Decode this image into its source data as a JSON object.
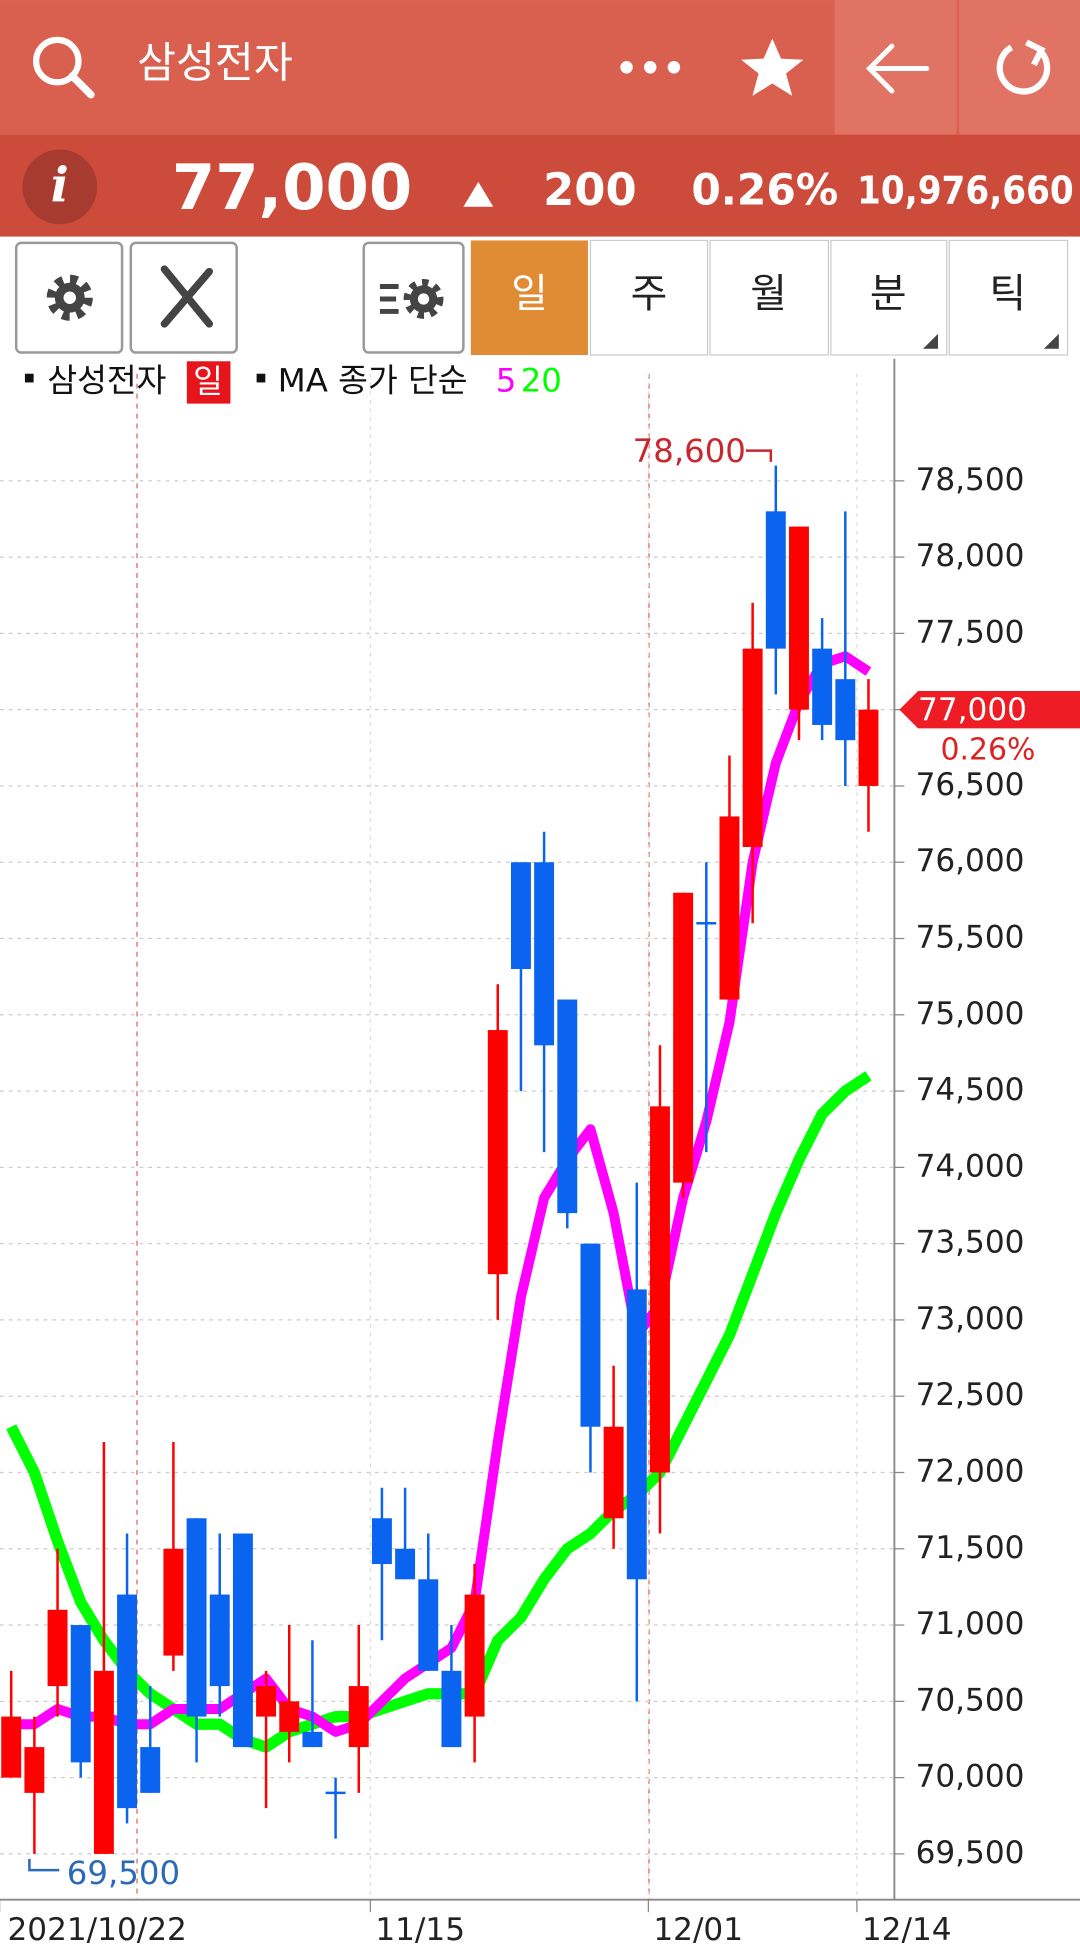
{
  "header": {
    "title": "삼성전자"
  },
  "quote": {
    "price": "77,000",
    "change": "200",
    "change_rate": "0.26%",
    "volume": "10,976,660"
  },
  "toolbar": {
    "tabs": [
      "일",
      "주",
      "월",
      "분",
      "틱"
    ]
  },
  "chart_data": {
    "type": "candlestick",
    "name": "삼성전자",
    "period": "일",
    "ma_label": "MA 종가 단순",
    "up_color": "#ff0000",
    "down_color": "#0a64f0",
    "categories": [
      "2021/10/22",
      null,
      null,
      null,
      null,
      null,
      null,
      null,
      null,
      null,
      null,
      null,
      null,
      null,
      null,
      null,
      "11/15",
      null,
      null,
      null,
      null,
      null,
      null,
      null,
      null,
      null,
      null,
      null,
      "12/01",
      null,
      null,
      null,
      null,
      null,
      null,
      null,
      null,
      "12/14"
    ],
    "open": [
      70000,
      69900,
      70600,
      71000,
      69500,
      71200,
      70200,
      70800,
      71700,
      71200,
      71600,
      70400,
      70300,
      70300,
      69900,
      70200,
      71700,
      71500,
      71300,
      70700,
      70400,
      73300,
      76000,
      76000,
      75100,
      73500,
      71700,
      73200,
      72000,
      73900,
      75600,
      75100,
      76100,
      78300,
      77000,
      77400,
      77200,
      76500
    ],
    "high": [
      70700,
      70400,
      71500,
      71000,
      72200,
      71600,
      70600,
      72200,
      71700,
      71600,
      71600,
      70700,
      71000,
      70900,
      70000,
      71000,
      71900,
      71900,
      71600,
      71000,
      71400,
      75200,
      76000,
      76200,
      75100,
      73500,
      72700,
      73900,
      74800,
      75800,
      76000,
      76700,
      77700,
      78600,
      78200,
      77600,
      78300,
      77200
    ],
    "low": [
      70000,
      69500,
      70400,
      70000,
      69500,
      69700,
      69900,
      70700,
      70100,
      70400,
      70200,
      69800,
      70100,
      70200,
      69600,
      69900,
      70900,
      71300,
      70700,
      70200,
      70100,
      73000,
      74500,
      74100,
      73600,
      72000,
      71500,
      70500,
      71600,
      73800,
      74100,
      75100,
      75600,
      77100,
      76800,
      76800,
      76500,
      76200
    ],
    "close": [
      70400,
      70200,
      71100,
      70100,
      70700,
      69800,
      69900,
      71500,
      70400,
      70600,
      70200,
      70600,
      70500,
      70200,
      69900,
      70600,
      71400,
      71300,
      70700,
      70200,
      71200,
      74900,
      75300,
      74800,
      73700,
      72300,
      72300,
      71300,
      74400,
      75800,
      75600,
      76300,
      77400,
      77400,
      78200,
      76900,
      76800,
      77000
    ],
    "series": [
      {
        "name": "5",
        "color": "#ff00ff",
        "values": [
          70350,
          70350,
          70450,
          70400,
          70400,
          70350,
          70350,
          70450,
          70450,
          70450,
          70550,
          70650,
          70450,
          70400,
          70300,
          70350,
          70500,
          70650,
          70750,
          70850,
          71150,
          72200,
          73150,
          73800,
          74050,
          74250,
          73700,
          72900,
          73100,
          73800,
          74300,
          74950,
          76000,
          76650,
          77050,
          77300,
          77350,
          77250
        ]
      },
      {
        "name": "20",
        "color": "#00ff00",
        "values": [
          72300,
          72000,
          71550,
          71150,
          70900,
          70700,
          70550,
          70450,
          70350,
          70350,
          70250,
          70200,
          70300,
          70350,
          70400,
          70400,
          70450,
          70500,
          70550,
          70550,
          70550,
          70900,
          71050,
          71300,
          71500,
          71600,
          71750,
          71850,
          72000,
          72300,
          72600,
          72900,
          73300,
          73700,
          74050,
          74350,
          74500,
          74600
        ]
      }
    ],
    "ylim": [
      69200,
      79300
    ],
    "yticks": [
      {
        "value": 69500,
        "label": "69,500"
      },
      {
        "value": 70000,
        "label": "70,000"
      },
      {
        "value": 70500,
        "label": "70,500"
      },
      {
        "value": 71000,
        "label": "71,000"
      },
      {
        "value": 71500,
        "label": "71,500"
      },
      {
        "value": 72000,
        "label": "72,000"
      },
      {
        "value": 72500,
        "label": "72,500"
      },
      {
        "value": 73000,
        "label": "73,000"
      },
      {
        "value": 73500,
        "label": "73,500"
      },
      {
        "value": 74000,
        "label": "74,000"
      },
      {
        "value": 74500,
        "label": "74,500"
      },
      {
        "value": 75000,
        "label": "75,000"
      },
      {
        "value": 75500,
        "label": "75,500"
      },
      {
        "value": 76000,
        "label": "76,000"
      },
      {
        "value": 76500,
        "label": "76,500"
      },
      {
        "value": 77000,
        "label": "77,000"
      },
      {
        "value": 77500,
        "label": "77,500"
      },
      {
        "value": 78000,
        "label": "78,000"
      },
      {
        "value": 78500,
        "label": "78,500"
      }
    ],
    "grid": true,
    "annotations": {
      "high": {
        "value": 78600,
        "label": "78,600"
      },
      "low": {
        "value": 69500,
        "label": "69,500"
      },
      "last": {
        "value": 77000,
        "label": "77,000"
      },
      "last_change": "0.26%"
    }
  }
}
